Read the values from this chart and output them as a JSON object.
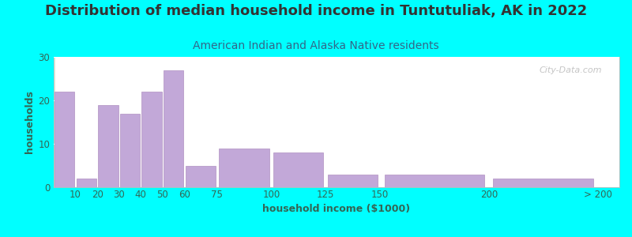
{
  "title": "Distribution of median household income in Tuntutuliak, AK in 2022",
  "subtitle": "American Indian and Alaska Native residents",
  "xlabel": "household income ($1000)",
  "ylabel": "households",
  "background_outer": "#00FFFF",
  "bar_color": "#c2a8d8",
  "bar_edge_color": "#b090c0",
  "watermark": "City-Data.com",
  "bin_edges": [
    0,
    10,
    20,
    30,
    40,
    50,
    60,
    75,
    100,
    125,
    150,
    200,
    250
  ],
  "tick_labels": [
    "10",
    "20",
    "30",
    "40",
    "50",
    "60",
    "75",
    "100",
    "125",
    "150",
    "200",
    "> 200"
  ],
  "tick_positions": [
    10,
    20,
    30,
    40,
    50,
    60,
    75,
    100,
    125,
    150,
    200,
    250
  ],
  "values": [
    22,
    2,
    19,
    17,
    22,
    27,
    5,
    9,
    8,
    3,
    3,
    2
  ],
  "ylim": [
    0,
    30
  ],
  "yticks": [
    0,
    10,
    20,
    30
  ],
  "xlim": [
    0,
    260
  ],
  "title_fontsize": 13,
  "subtitle_fontsize": 10,
  "axis_label_fontsize": 9,
  "tick_fontsize": 8.5,
  "title_color": "#333333",
  "subtitle_color": "#336688",
  "tick_color": "#336655",
  "label_color": "#336655"
}
